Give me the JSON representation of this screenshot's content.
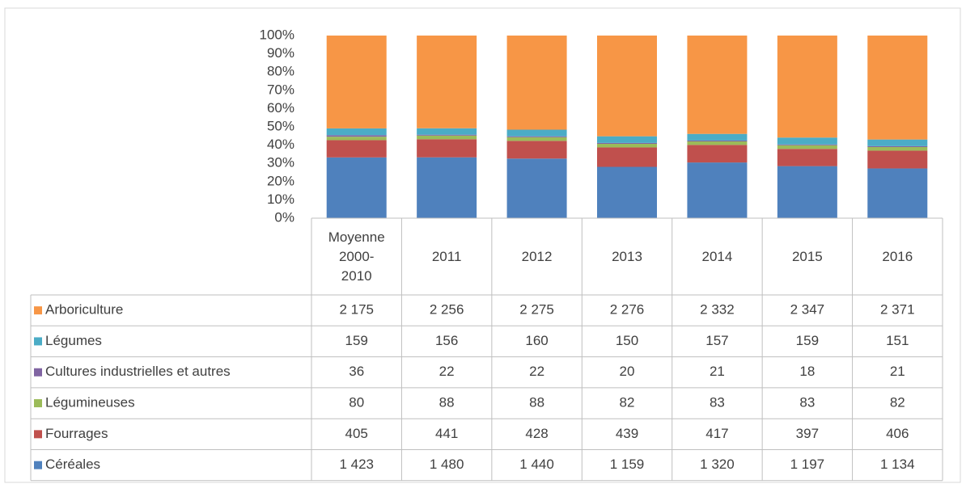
{
  "chart_data": {
    "type": "bar",
    "stacking": "percent",
    "categories": [
      "Moyenne 2000-2010",
      "2011",
      "2012",
      "2013",
      "2014",
      "2015",
      "2016"
    ],
    "series": [
      {
        "name": "Céréales",
        "color": "#4f81bd",
        "values": [
          1423,
          1480,
          1440,
          1159,
          1320,
          1197,
          1134
        ],
        "value_labels": [
          "1 423",
          "1 480",
          "1 440",
          "1 159",
          "1 320",
          "1 197",
          "1 134"
        ]
      },
      {
        "name": "Fourrages",
        "color": "#c0504d",
        "values": [
          405,
          441,
          428,
          439,
          417,
          397,
          406
        ]
      },
      {
        "name": "Légumineuses",
        "color": "#9bbb59",
        "values": [
          80,
          88,
          88,
          82,
          83,
          83,
          82
        ]
      },
      {
        "name": "Cultures industrielles et autres",
        "color": "#8064a2",
        "values": [
          36,
          22,
          22,
          20,
          21,
          18,
          21
        ]
      },
      {
        "name": "Légumes",
        "color": "#4bacc6",
        "values": [
          159,
          156,
          160,
          150,
          157,
          159,
          151
        ]
      },
      {
        "name": "Arboriculture",
        "color": "#f79646",
        "values": [
          2175,
          2256,
          2275,
          2276,
          2332,
          2347,
          2371
        ],
        "value_labels": [
          "2 175",
          "2 256",
          "2 275",
          "2 276",
          "2 332",
          "2 347",
          "2 371"
        ]
      }
    ],
    "ylim": [
      0,
      100
    ],
    "yticks": [
      {
        "value": 0,
        "label": "0%"
      },
      {
        "value": 10,
        "label": "10%"
      },
      {
        "value": 20,
        "label": "20%"
      },
      {
        "value": 30,
        "label": "30%"
      },
      {
        "value": 40,
        "label": "40%"
      },
      {
        "value": 50,
        "label": "50%"
      },
      {
        "value": 60,
        "label": "60%"
      },
      {
        "value": 70,
        "label": "70%"
      },
      {
        "value": 80,
        "label": "80%"
      },
      {
        "value": 90,
        "label": "90%"
      },
      {
        "value": 100,
        "label": "100%"
      }
    ]
  }
}
